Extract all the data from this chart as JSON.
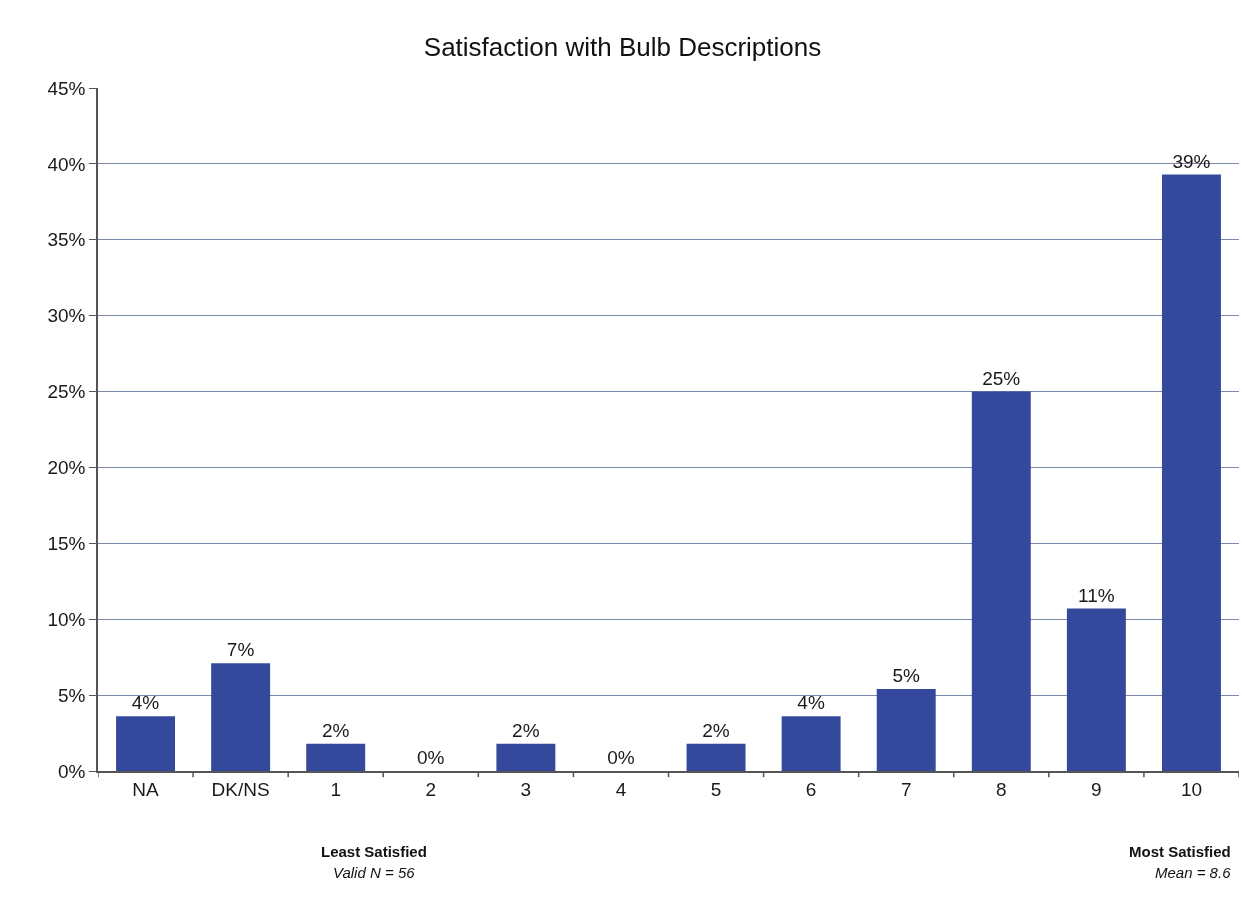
{
  "chart_data": {
    "type": "bar",
    "title": "Satisfaction with Bulb Descriptions",
    "categories": [
      "NA",
      "DK/NS",
      "1",
      "2",
      "3",
      "4",
      "5",
      "6",
      "7",
      "8",
      "9",
      "10"
    ],
    "values": [
      3.6,
      7.1,
      1.8,
      0,
      1.8,
      0,
      1.8,
      3.6,
      5.4,
      25,
      10.7,
      39.3
    ],
    "value_labels": [
      "4%",
      "7%",
      "2%",
      "0%",
      "2%",
      "0%",
      "2%",
      "4%",
      "5%",
      "25%",
      "11%",
      "39%"
    ],
    "color": "#34499b",
    "ylim": [
      0,
      45
    ],
    "yticks": [
      {
        "value": 0,
        "label": "0%"
      },
      {
        "value": 5,
        "label": "5%"
      },
      {
        "value": 10,
        "label": "10%"
      },
      {
        "value": 15,
        "label": "15%"
      },
      {
        "value": 20,
        "label": "20%"
      },
      {
        "value": 25,
        "label": "25%"
      },
      {
        "value": 30,
        "label": "30%"
      },
      {
        "value": 35,
        "label": "35%"
      },
      {
        "value": 40,
        "label": "40%"
      },
      {
        "value": 45,
        "label": "45%"
      }
    ],
    "grid": "y",
    "annotations": [
      "Least Satisfied",
      "Valid N = 56",
      "Most Satisfied",
      "Mean = 8.6"
    ]
  }
}
